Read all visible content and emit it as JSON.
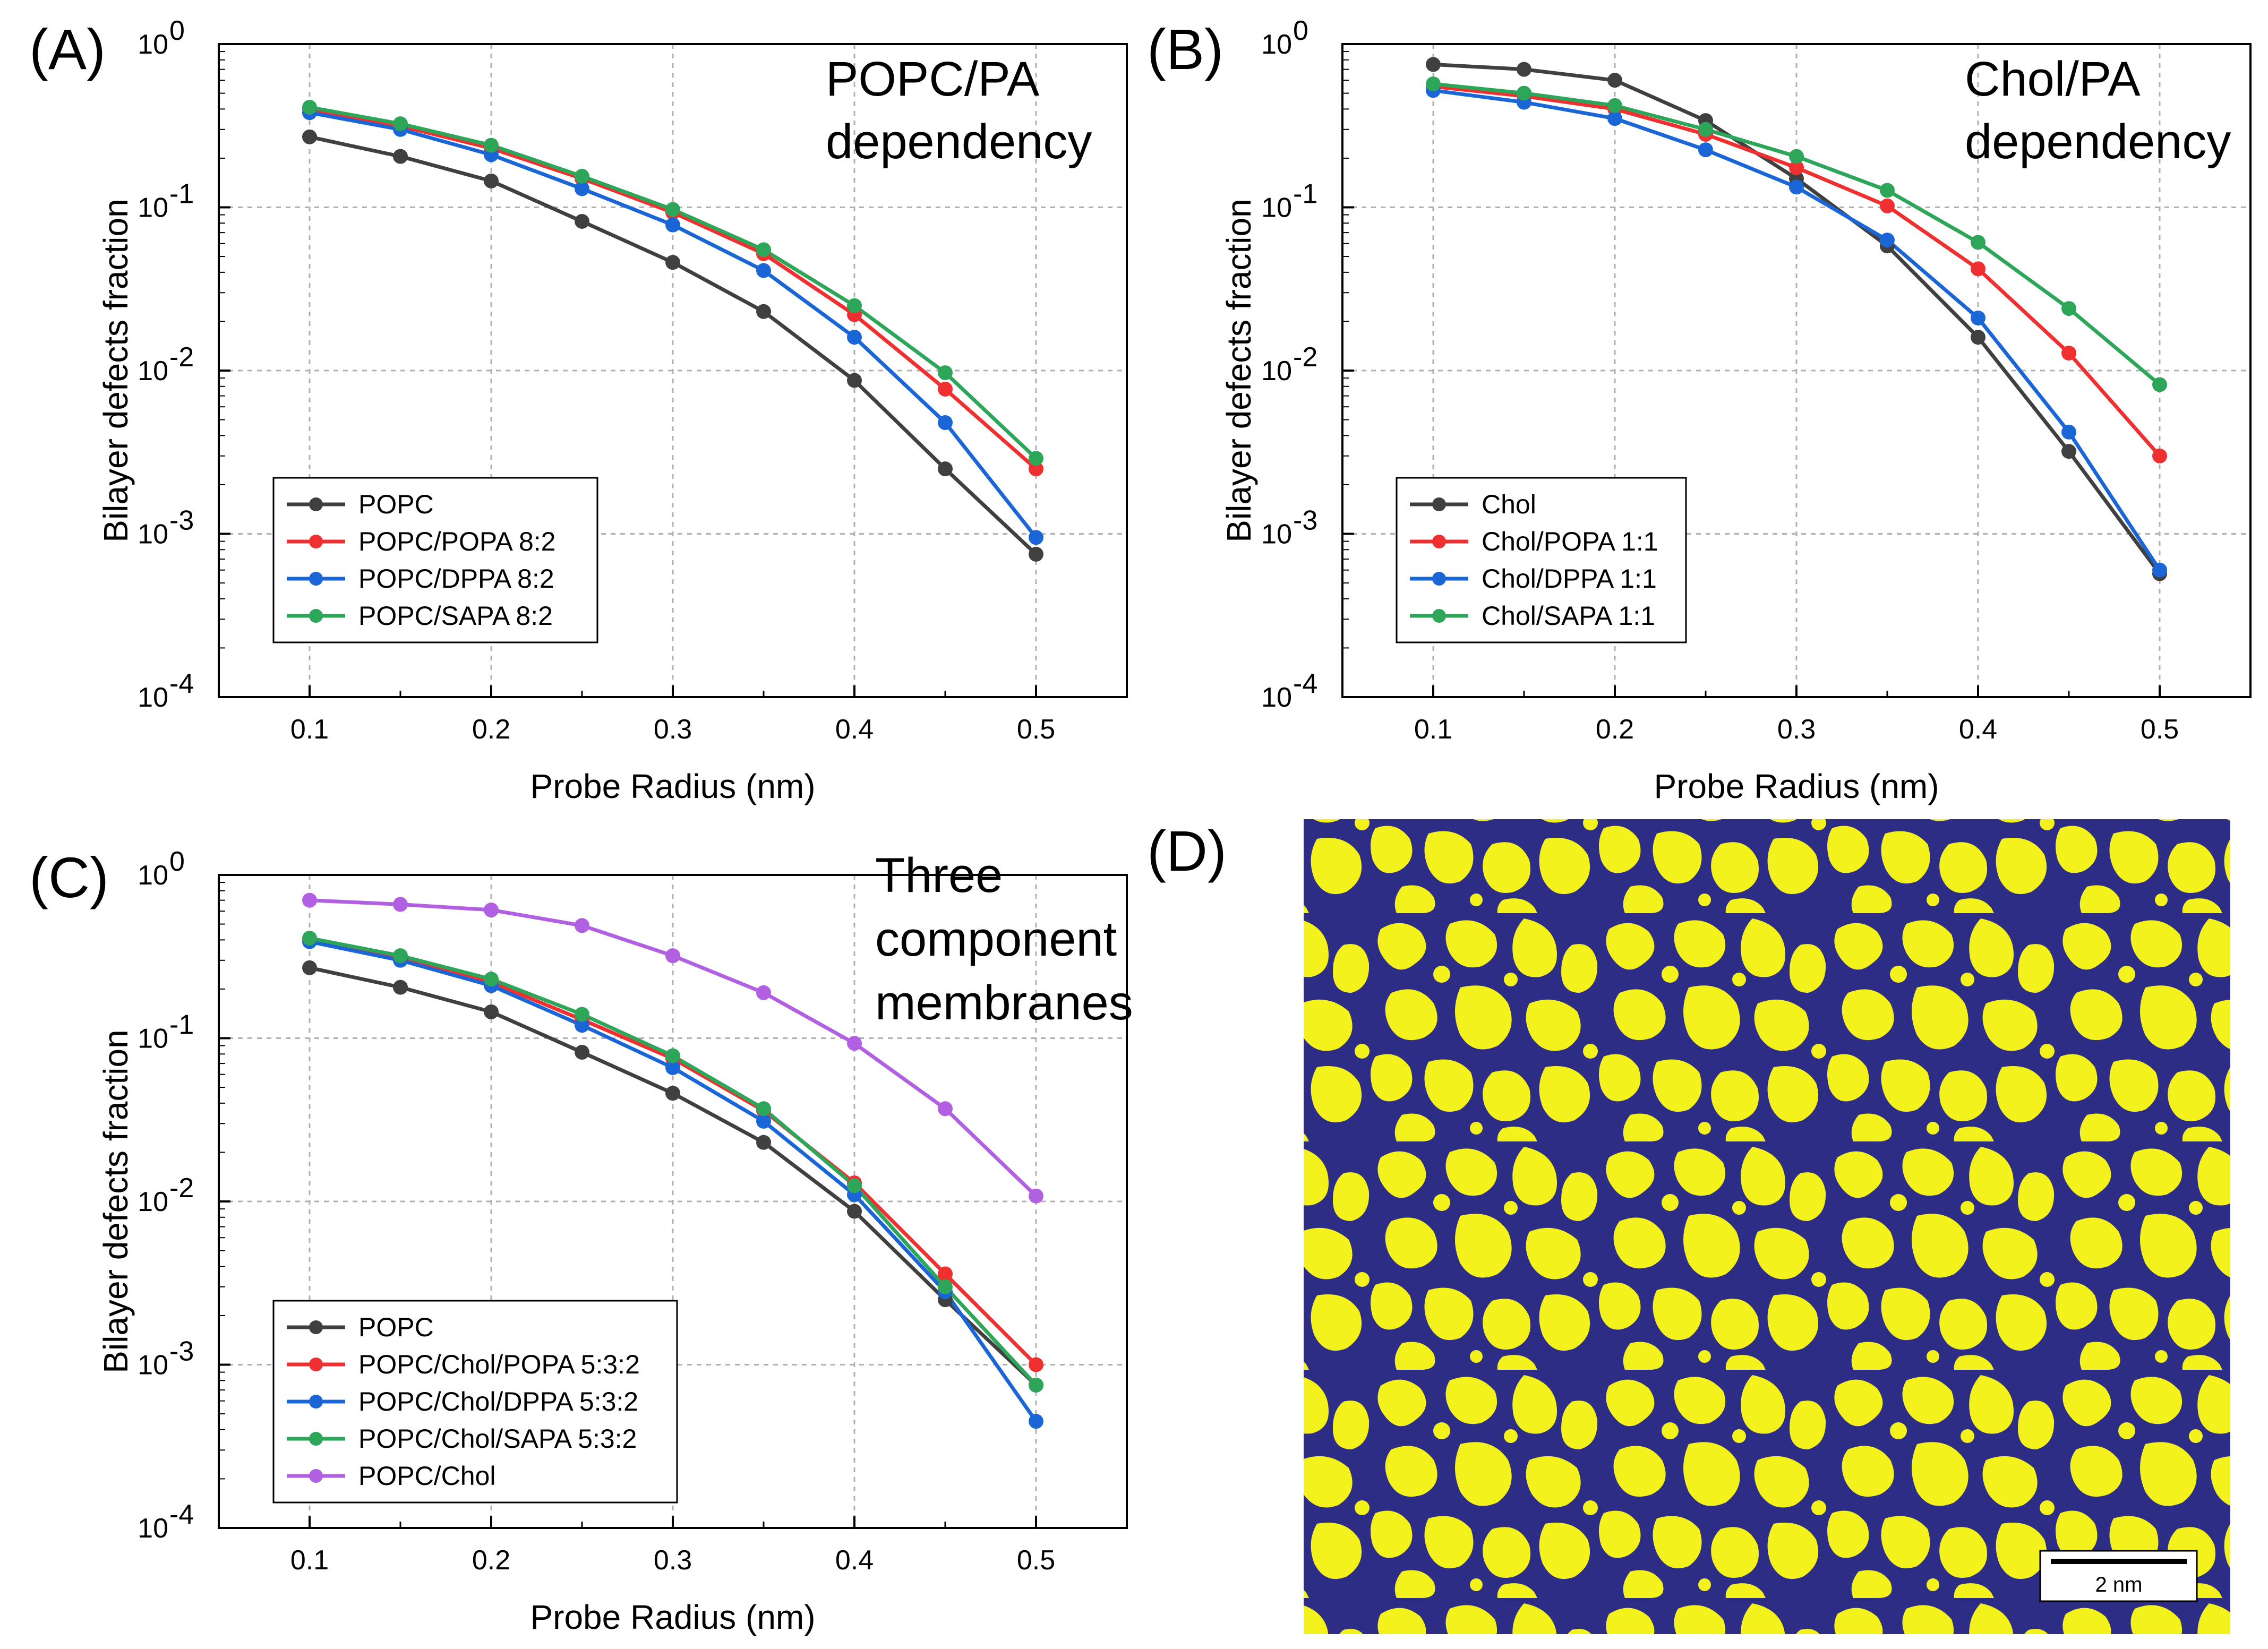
{
  "figure": {
    "colors": {
      "black": "#404040",
      "red": "#f03030",
      "blue": "#1a66d6",
      "green": "#2ea65a",
      "purple": "#b060e0",
      "membrane_bg": "#2e2d86",
      "defect": "#f4f21c"
    },
    "panel_d": {
      "label": "(D)",
      "scale_bar_text": "2 nm",
      "description_colors": {
        "background": "#2e2d86",
        "defects": "#f4f21c"
      }
    }
  },
  "chart_data": [
    {
      "type": "line",
      "label": "(A)",
      "annotation": [
        "POPC/PA",
        "dependency"
      ],
      "xlabel": "Probe Radius (nm)",
      "ylabel": "Bilayer defects fraction",
      "yscale": "log",
      "xlim": [
        0.05,
        0.55
      ],
      "ylim_exp": [
        -4,
        0
      ],
      "xticks": [
        "0.1",
        "0.2",
        "0.3",
        "0.4",
        "0.5"
      ],
      "ytick_exps": [
        "0",
        "-1",
        "-2",
        "-3",
        "-4"
      ],
      "grid": true,
      "legend_position": "bottom-left",
      "x": [
        0.1,
        0.15,
        0.2,
        0.25,
        0.3,
        0.35,
        0.4,
        0.45,
        0.5
      ],
      "series": [
        {
          "name": "POPC",
          "color": "#404040",
          "values": [
            0.27,
            0.205,
            0.145,
            0.082,
            0.046,
            0.023,
            0.0087,
            0.0025,
            0.00075
          ]
        },
        {
          "name": "POPC/POPA 8:2",
          "color": "#f03030",
          "values": [
            0.4,
            0.315,
            0.23,
            0.15,
            0.093,
            0.052,
            0.022,
            0.0077,
            0.0025
          ]
        },
        {
          "name": "POPC/DPPA 8:2",
          "color": "#1a66d6",
          "values": [
            0.38,
            0.3,
            0.21,
            0.13,
            0.078,
            0.041,
            0.016,
            0.0048,
            0.00095
          ]
        },
        {
          "name": "POPC/SAPA 8:2",
          "color": "#2ea65a",
          "values": [
            0.41,
            0.325,
            0.24,
            0.155,
            0.097,
            0.055,
            0.025,
            0.0097,
            0.0029
          ]
        }
      ]
    },
    {
      "type": "line",
      "label": "(B)",
      "annotation": [
        "Chol/PA",
        "dependency"
      ],
      "xlabel": "Probe Radius (nm)",
      "ylabel": "Bilayer defects fraction",
      "yscale": "log",
      "xlim": [
        0.05,
        0.55
      ],
      "ylim_exp": [
        -4,
        0
      ],
      "xticks": [
        "0.1",
        "0.2",
        "0.3",
        "0.4",
        "0.5"
      ],
      "ytick_exps": [
        "0",
        "-1",
        "-2",
        "-3",
        "-4"
      ],
      "grid": true,
      "legend_position": "bottom-left",
      "x": [
        0.1,
        0.15,
        0.2,
        0.25,
        0.3,
        0.35,
        0.4,
        0.45,
        0.5
      ],
      "series": [
        {
          "name": "Chol",
          "color": "#404040",
          "values": [
            0.75,
            0.7,
            0.6,
            0.34,
            0.15,
            0.058,
            0.016,
            0.0032,
            0.00057
          ]
        },
        {
          "name": "Chol/POPA 1:1",
          "color": "#f03030",
          "values": [
            0.55,
            0.48,
            0.4,
            0.28,
            0.175,
            0.102,
            0.042,
            0.0128,
            0.003
          ]
        },
        {
          "name": "Chol/DPPA 1:1",
          "color": "#1a66d6",
          "values": [
            0.52,
            0.44,
            0.35,
            0.225,
            0.133,
            0.063,
            0.021,
            0.0042,
            0.0006
          ]
        },
        {
          "name": "Chol/SAPA 1:1",
          "color": "#2ea65a",
          "values": [
            0.57,
            0.5,
            0.42,
            0.3,
            0.205,
            0.127,
            0.061,
            0.024,
            0.0082
          ]
        }
      ]
    },
    {
      "type": "line",
      "label": "(C)",
      "annotation": [
        "Three",
        "component",
        "membranes"
      ],
      "xlabel": "Probe Radius (nm)",
      "ylabel": "Bilayer defects fraction",
      "yscale": "log",
      "xlim": [
        0.05,
        0.55
      ],
      "ylim_exp": [
        -4,
        0
      ],
      "xticks": [
        "0.1",
        "0.2",
        "0.3",
        "0.4",
        "0.5"
      ],
      "ytick_exps": [
        "0",
        "-1",
        "-2",
        "-3",
        "-4"
      ],
      "grid": true,
      "legend_position": "bottom-left",
      "x": [
        0.1,
        0.15,
        0.2,
        0.25,
        0.3,
        0.35,
        0.4,
        0.45,
        0.5
      ],
      "series": [
        {
          "name": "POPC",
          "color": "#404040",
          "values": [
            0.27,
            0.205,
            0.145,
            0.082,
            0.046,
            0.023,
            0.0087,
            0.0025,
            0.00075
          ]
        },
        {
          "name": "POPC/Chol/POPA 5:3:2",
          "color": "#f03030",
          "values": [
            0.4,
            0.31,
            0.22,
            0.13,
            0.075,
            0.036,
            0.013,
            0.0036,
            0.001
          ]
        },
        {
          "name": "POPC/Chol/DPPA 5:3:2",
          "color": "#1a66d6",
          "values": [
            0.39,
            0.3,
            0.21,
            0.12,
            0.066,
            0.031,
            0.011,
            0.0028,
            0.00045
          ]
        },
        {
          "name": "POPC/Chol/SAPA 5:3:2",
          "color": "#2ea65a",
          "values": [
            0.41,
            0.32,
            0.23,
            0.14,
            0.078,
            0.037,
            0.0125,
            0.003,
            0.00075
          ]
        },
        {
          "name": "POPC/Chol",
          "color": "#b060e0",
          "values": [
            0.7,
            0.66,
            0.61,
            0.49,
            0.32,
            0.19,
            0.093,
            0.037,
            0.0108
          ]
        }
      ]
    }
  ]
}
